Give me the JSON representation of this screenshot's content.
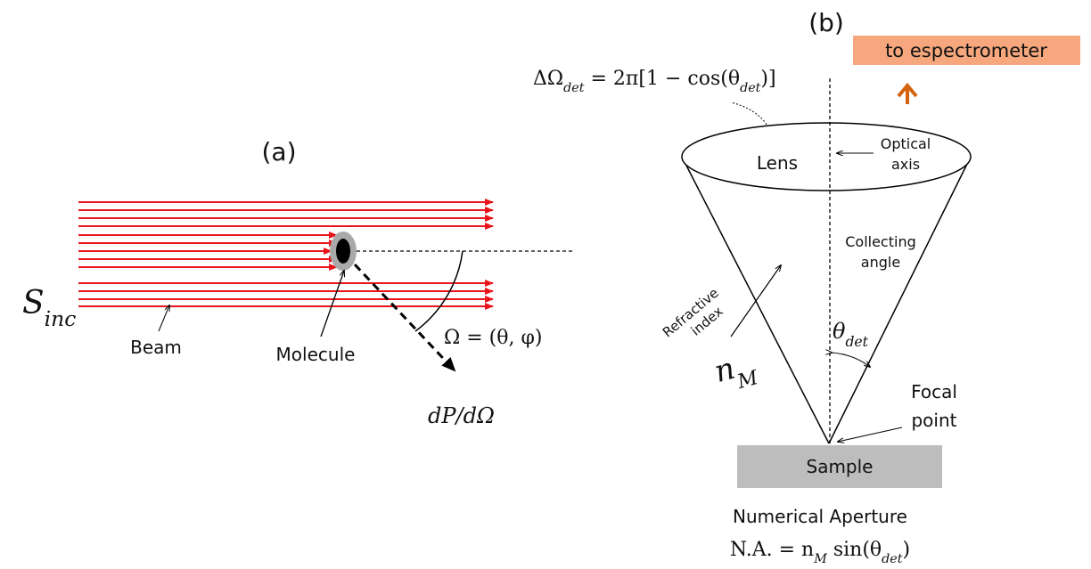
{
  "panel_a": {
    "label": "(a)",
    "source": [
      "S",
      "inc"
    ],
    "beam_label": "Beam",
    "molecule_label": "Molecule",
    "angle_formula": "Ω = (θ, φ)",
    "scattered_label": [
      "dP/dΩ"
    ]
  },
  "panel_b": {
    "label": "(b)",
    "output_label": "to espectrometer",
    "solid_angle_formula": [
      "ΔΩ",
      "det",
      " = 2π[1 − cos(θ",
      "det",
      ")]"
    ],
    "lens_label": "Lens",
    "optical_axis_label": [
      "Optical",
      "axis"
    ],
    "collecting_angle_label": [
      "Collecting",
      "angle"
    ],
    "refractive_index_label": [
      "Refractive",
      "index"
    ],
    "refractive_index_symbol": [
      "n",
      "M"
    ],
    "angle_symbol": [
      "θ",
      "det"
    ],
    "focal_point_label": [
      "Focal",
      "point"
    ],
    "sample_label": "Sample",
    "aperture_title": "Numerical Aperture",
    "aperture_formula": [
      "N.A. = n",
      "M",
      " sin(θ",
      "det",
      ")"
    ]
  }
}
